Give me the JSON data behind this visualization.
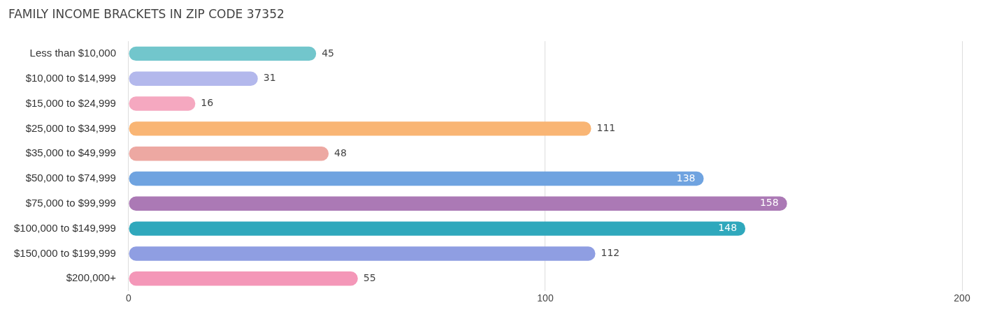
{
  "chart_data": {
    "type": "bar",
    "orientation": "horizontal",
    "title": "FAMILY INCOME BRACKETS IN ZIP CODE 37352",
    "categories": [
      "Less than $10,000",
      "$10,000 to $14,999",
      "$15,000 to $24,999",
      "$25,000 to $34,999",
      "$35,000 to $49,999",
      "$50,000 to $74,999",
      "$75,000 to $99,999",
      "$100,000 to $149,999",
      "$150,000 to $199,999",
      "$200,000+"
    ],
    "values": [
      45,
      31,
      16,
      111,
      48,
      138,
      158,
      148,
      112,
      55
    ],
    "colors": [
      "#72c6cc",
      "#b3b8ec",
      "#f5a8c0",
      "#f9b574",
      "#eda8a2",
      "#6fa3e0",
      "#ab79b5",
      "#2fa8bc",
      "#8f9ee2",
      "#f497b8"
    ],
    "xlim": [
      0,
      200
    ],
    "xticks": [
      0,
      100,
      200
    ],
    "grid": "x",
    "data_labels": true
  }
}
